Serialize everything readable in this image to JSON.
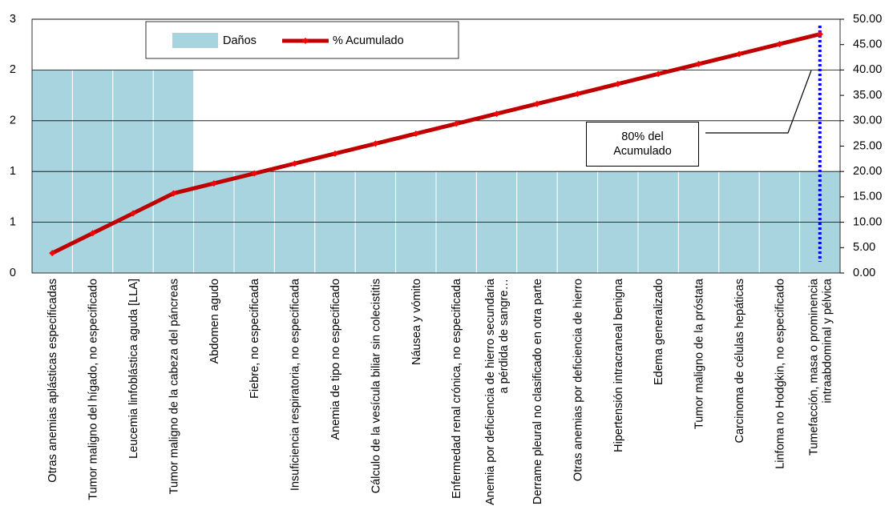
{
  "chart_data": {
    "type": "pareto",
    "categories": [
      "Otras anemias aplásticas especificadas",
      "Tumor maligno del hígado, no especificado",
      "Leucemia linfoblástica aguda [LLA]",
      "Tumor maligno de la cabeza del páncreas",
      "Abdomen agudo",
      "Fiebre, no especificada",
      "Insuficiencia respiratoria, no especificada",
      "Anemia de tipo no especificado",
      "Cálculo de la vesícula biliar sin colecistitis",
      "Náusea y vómito",
      "Enfermedad renal crónica, no especificada",
      "Anemia por deficiencia de hierro secundaria a pérdida de sangre…",
      "Derrame pleural no clasificado en otra parte",
      "Otras anemias por deficiencia de hierro",
      "Hipertensión intracraneal benigna",
      "Edema generalizado",
      "Tumor maligno de la próstata",
      "Carcinoma de células hepáticas",
      "Linfoma no Hodgkin, no especificado",
      "Tumefacción, masa o prominencia intraabdominal y pélvica"
    ],
    "series": [
      {
        "name": "Daños",
        "color": "#a8d4e0",
        "values": [
          2,
          2,
          2,
          2,
          1,
          1,
          1,
          1,
          1,
          1,
          1,
          1,
          1,
          1,
          1,
          1,
          1,
          1,
          1,
          1
        ]
      },
      {
        "name": "% Acumulado",
        "color": "#c00000",
        "axis": "y2",
        "values": [
          3.92,
          7.84,
          11.76,
          15.69,
          17.65,
          19.61,
          21.57,
          23.53,
          25.49,
          27.45,
          29.41,
          31.37,
          33.33,
          35.29,
          37.25,
          39.22,
          41.18,
          43.14,
          45.1,
          47.06
        ]
      }
    ],
    "ylim": [
      0,
      2.5
    ],
    "yticks": [
      0,
      {
        "value": 0.5,
        "label": "1"
      },
      1,
      {
        "value": 1.5,
        "label": "2"
      },
      2,
      {
        "value": 2.5,
        "label": "3"
      }
    ],
    "y2lim": [
      0,
      50
    ],
    "y2ticks": [
      {
        "value": 0,
        "label": "0.00"
      },
      {
        "value": 5,
        "label": "5.00"
      },
      {
        "value": 10,
        "label": "10.00"
      },
      {
        "value": 15,
        "label": "15.00"
      },
      {
        "value": 20,
        "label": "20.00"
      },
      {
        "value": 25,
        "label": "25.00"
      },
      {
        "value": 30,
        "label": "30.00"
      },
      {
        "value": 35,
        "label": "35.00"
      },
      {
        "value": 40,
        "label": "40.00"
      },
      {
        "value": 45,
        "label": "45.00"
      },
      {
        "value": 50,
        "label": "50.00"
      }
    ],
    "grid": true,
    "annotation": "80% del Acumulado"
  }
}
